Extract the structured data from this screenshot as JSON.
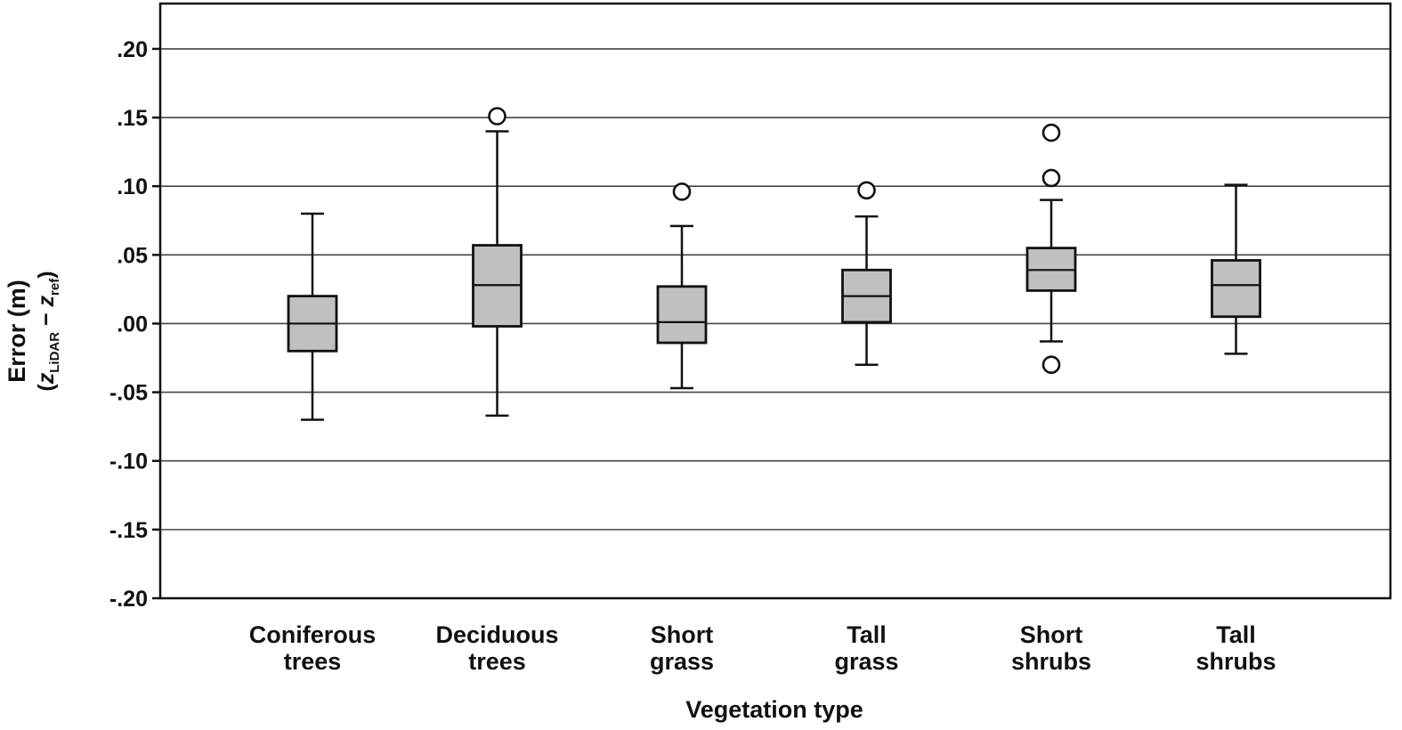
{
  "chart_data": {
    "type": "box",
    "xlabel": "Vegetation type",
    "ylabel": {
      "main": "Error (m)",
      "open": "(",
      "var1": "z",
      "sub1": "LiDAR",
      "minus": " − ",
      "var2": "z",
      "sub2": "ref",
      "close": ")"
    },
    "ylim": [
      -0.2,
      0.233
    ],
    "yticks": [
      {
        "value": 0.2,
        "label": ".20"
      },
      {
        "value": 0.15,
        "label": ".15"
      },
      {
        "value": 0.1,
        "label": ".10"
      },
      {
        "value": 0.05,
        "label": ".05"
      },
      {
        "value": 0.0,
        "label": ".00"
      },
      {
        "value": -0.05,
        "label": "-.05"
      },
      {
        "value": -0.1,
        "label": "-.10"
      },
      {
        "value": -0.15,
        "label": "-.15"
      },
      {
        "value": -0.2,
        "label": "-.20"
      }
    ],
    "grid": "horizontal",
    "box_color": "#c0c0c0",
    "categories": [
      {
        "line1": "Coniferous",
        "line2": "trees",
        "whisker_low": -0.07,
        "q1": -0.02,
        "median": 0.0,
        "q3": 0.02,
        "whisker_high": 0.08,
        "outliers": []
      },
      {
        "line1": "Deciduous",
        "line2": "trees",
        "whisker_low": -0.067,
        "q1": -0.002,
        "median": 0.028,
        "q3": 0.057,
        "whisker_high": 0.14,
        "outliers": [
          0.151
        ]
      },
      {
        "line1": "Short",
        "line2": "grass",
        "whisker_low": -0.047,
        "q1": -0.014,
        "median": 0.001,
        "q3": 0.027,
        "whisker_high": 0.071,
        "outliers": [
          0.096
        ]
      },
      {
        "line1": "Tall",
        "line2": "grass",
        "whisker_low": -0.03,
        "q1": 0.001,
        "median": 0.02,
        "q3": 0.039,
        "whisker_high": 0.078,
        "outliers": [
          0.097
        ]
      },
      {
        "line1": "Short",
        "line2": "shrubs",
        "whisker_low": -0.013,
        "q1": 0.024,
        "median": 0.039,
        "q3": 0.055,
        "whisker_high": 0.09,
        "outliers": [
          0.139,
          0.106,
          -0.03
        ]
      },
      {
        "line1": "Tall",
        "line2": "shrubs",
        "whisker_low": -0.022,
        "q1": 0.005,
        "median": 0.028,
        "q3": 0.046,
        "whisker_high": 0.101,
        "outliers": []
      }
    ]
  }
}
